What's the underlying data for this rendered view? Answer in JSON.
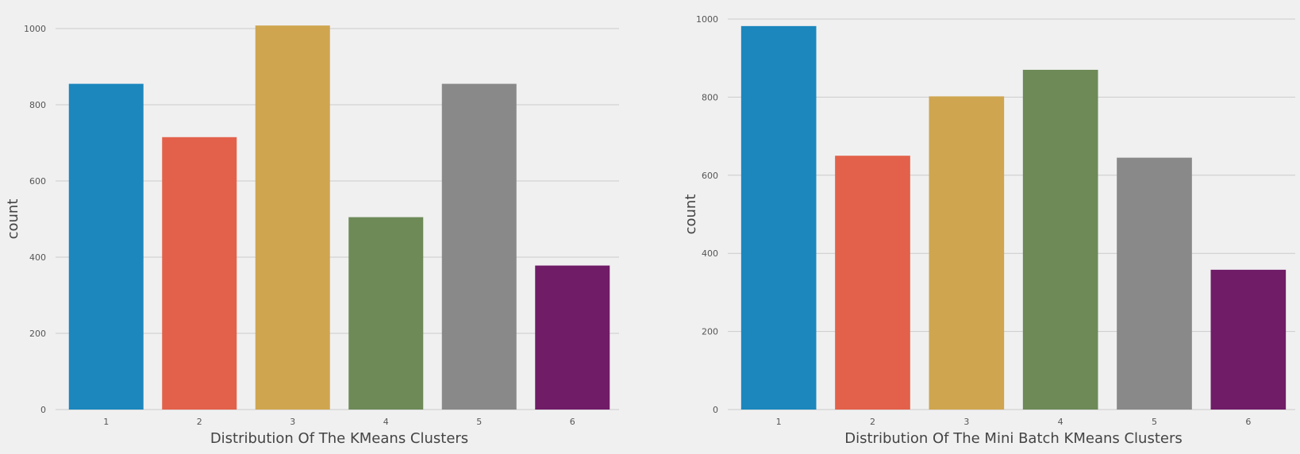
{
  "chart_data": [
    {
      "type": "bar",
      "categories": [
        "1",
        "2",
        "3",
        "4",
        "5",
        "6"
      ],
      "values": [
        855,
        715,
        1008,
        505,
        855,
        378
      ],
      "title": "",
      "xlabel": "Distribution Of The KMeans Clusters",
      "ylabel": "count",
      "ylim": [
        0,
        1000
      ],
      "yticks": [
        "0",
        "200",
        "400",
        "600",
        "800",
        "1000"
      ],
      "bar_colors": [
        "#1b87bd",
        "#e3614a",
        "#cfa54f",
        "#6d8a57",
        "#898989",
        "#701c67"
      ],
      "grid": true,
      "background": "#f0f0f0"
    },
    {
      "type": "bar",
      "categories": [
        "1",
        "2",
        "3",
        "4",
        "5",
        "6"
      ],
      "values": [
        982,
        650,
        802,
        870,
        645,
        358
      ],
      "title": "",
      "xlabel": "Distribution Of The Mini Batch KMeans Clusters",
      "ylabel": "count",
      "ylim": [
        0,
        1000
      ],
      "yticks": [
        "0",
        "200",
        "400",
        "600",
        "800",
        "1000"
      ],
      "bar_colors": [
        "#1b87bd",
        "#e3614a",
        "#cfa54f",
        "#6d8a57",
        "#898989",
        "#701c67"
      ],
      "grid": true,
      "background": "#f0f0f0"
    }
  ]
}
